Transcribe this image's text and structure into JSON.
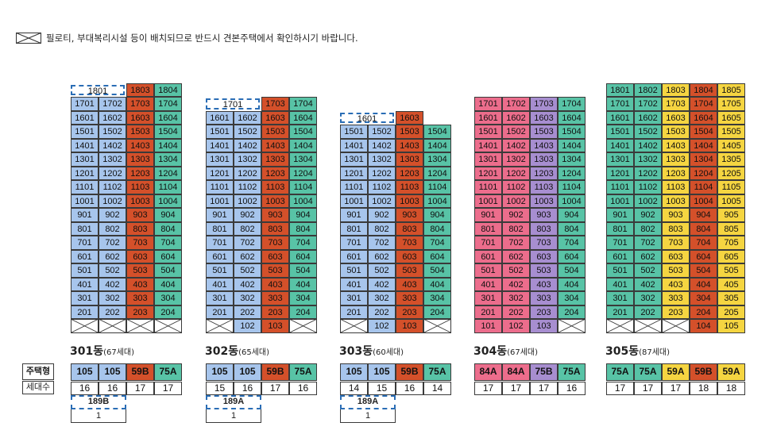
{
  "note": {
    "text": "필로티, 부대복리시설 등이 배치되므로 반드시 견본주택에서 확인하시기 바랍니다."
  },
  "row_headers": {
    "type": "주택형",
    "count": "세대수"
  },
  "colors": {
    "blue": "#a7c5ec",
    "orange": "#d4502a",
    "green": "#58c3a6",
    "pink": "#ec6d8c",
    "purple": "#a78ed0",
    "yellow": "#f5d541",
    "dash": "#2a6db5"
  },
  "buildings": [
    {
      "name": "301동",
      "units": "(67세대)",
      "colors": [
        "blue",
        "blue",
        "orange",
        "green"
      ],
      "types": [
        "105",
        "105",
        "59B",
        "75A"
      ],
      "counts": [
        "16",
        "16",
        "17",
        "17"
      ],
      "extra": {
        "type": "189B",
        "count": "1"
      },
      "top_floor": 18,
      "floors": {
        "18": [
          "1801d",
          "",
          "1803",
          "1804"
        ],
        "17": [
          "1701",
          "1702",
          "1703",
          "1704"
        ],
        "16": [
          "1601",
          "1602",
          "1603",
          "1604"
        ],
        "15": [
          "1501",
          "1502",
          "1503",
          "1504"
        ],
        "14": [
          "1401",
          "1402",
          "1403",
          "1404"
        ],
        "13": [
          "1301",
          "1302",
          "1303",
          "1304"
        ],
        "12": [
          "1201",
          "1202",
          "1203",
          "1204"
        ],
        "11": [
          "1101",
          "1102",
          "1103",
          "1104"
        ],
        "10": [
          "1001",
          "1002",
          "1003",
          "1004"
        ],
        "9": [
          "901",
          "902",
          "903",
          "904"
        ],
        "8": [
          "801",
          "802",
          "803",
          "804"
        ],
        "7": [
          "701",
          "702",
          "703",
          "704"
        ],
        "6": [
          "601",
          "602",
          "603",
          "604"
        ],
        "5": [
          "501",
          "502",
          "503",
          "504"
        ],
        "4": [
          "401",
          "402",
          "403",
          "404"
        ],
        "3": [
          "301",
          "302",
          "303",
          "304"
        ],
        "2": [
          "201",
          "202",
          "203",
          "204"
        ],
        "1": [
          "x",
          "x",
          "x",
          "x"
        ]
      }
    },
    {
      "name": "302동",
      "units": "(65세대)",
      "colors": [
        "blue",
        "blue",
        "orange",
        "green"
      ],
      "types": [
        "105",
        "105",
        "59B",
        "75A"
      ],
      "counts": [
        "15",
        "16",
        "17",
        "16"
      ],
      "extra": {
        "type": "189A",
        "count": "1"
      },
      "top_floor": 17,
      "floors": {
        "17": [
          "1701d",
          "",
          "1703",
          "1704"
        ],
        "16": [
          "1601",
          "1602",
          "1603",
          "1604"
        ],
        "15": [
          "1501",
          "1502",
          "1503",
          "1504"
        ],
        "14": [
          "1401",
          "1402",
          "1403",
          "1404"
        ],
        "13": [
          "1301",
          "1302",
          "1303",
          "1304"
        ],
        "12": [
          "1201",
          "1202",
          "1203",
          "1204"
        ],
        "11": [
          "1101",
          "1102",
          "1103",
          "1104"
        ],
        "10": [
          "1001",
          "1002",
          "1003",
          "1004"
        ],
        "9": [
          "901",
          "902",
          "903",
          "904"
        ],
        "8": [
          "801",
          "802",
          "803",
          "804"
        ],
        "7": [
          "701",
          "702",
          "703",
          "704"
        ],
        "6": [
          "601",
          "602",
          "603",
          "604"
        ],
        "5": [
          "501",
          "502",
          "503",
          "504"
        ],
        "4": [
          "401",
          "402",
          "403",
          "404"
        ],
        "3": [
          "301",
          "302",
          "303",
          "304"
        ],
        "2": [
          "201",
          "202",
          "203",
          "204"
        ],
        "1": [
          "x",
          "102",
          "103",
          "x"
        ]
      }
    },
    {
      "name": "303동",
      "units": "(60세대)",
      "colors": [
        "blue",
        "blue",
        "orange",
        "green"
      ],
      "types": [
        "105",
        "105",
        "59B",
        "75A"
      ],
      "counts": [
        "14",
        "15",
        "16",
        "14"
      ],
      "extra": {
        "type": "189A",
        "count": "1"
      },
      "top_floor": 16,
      "floors": {
        "16": [
          "1601d",
          "",
          "1603",
          "-"
        ],
        "15": [
          "1501",
          "1502",
          "1503",
          "1504"
        ],
        "14": [
          "1401",
          "1402",
          "1403",
          "1404"
        ],
        "13": [
          "1301",
          "1302",
          "1303",
          "1304"
        ],
        "12": [
          "1201",
          "1202",
          "1203",
          "1204"
        ],
        "11": [
          "1101",
          "1102",
          "1103",
          "1104"
        ],
        "10": [
          "1001",
          "1002",
          "1003",
          "1004"
        ],
        "9": [
          "901",
          "902",
          "903",
          "904"
        ],
        "8": [
          "801",
          "802",
          "803",
          "804"
        ],
        "7": [
          "701",
          "702",
          "703",
          "704"
        ],
        "6": [
          "601",
          "602",
          "603",
          "604"
        ],
        "5": [
          "501",
          "502",
          "503",
          "504"
        ],
        "4": [
          "401",
          "402",
          "403",
          "404"
        ],
        "3": [
          "301",
          "302",
          "303",
          "304"
        ],
        "2": [
          "201",
          "202",
          "203",
          "204"
        ],
        "1": [
          "x",
          "102",
          "103",
          "x"
        ]
      }
    },
    {
      "name": "304동",
      "units": "(67세대)",
      "colors": [
        "pink",
        "pink",
        "purple",
        "green"
      ],
      "types": [
        "84A",
        "84A",
        "75B",
        "75A"
      ],
      "counts": [
        "17",
        "17",
        "17",
        "16"
      ],
      "extra": null,
      "top_floor": 17,
      "floors": {
        "17": [
          "1701",
          "1702",
          "1703",
          "1704"
        ],
        "16": [
          "1601",
          "1602",
          "1603",
          "1604"
        ],
        "15": [
          "1501",
          "1502",
          "1503",
          "1504"
        ],
        "14": [
          "1401",
          "1402",
          "1403",
          "1404"
        ],
        "13": [
          "1301",
          "1302",
          "1303",
          "1304"
        ],
        "12": [
          "1201",
          "1202",
          "1203",
          "1204"
        ],
        "11": [
          "1101",
          "1102",
          "1103",
          "1104"
        ],
        "10": [
          "1001",
          "1002",
          "1003",
          "1004"
        ],
        "9": [
          "901",
          "902",
          "903",
          "904"
        ],
        "8": [
          "801",
          "802",
          "803",
          "804"
        ],
        "7": [
          "701",
          "702",
          "703",
          "704"
        ],
        "6": [
          "601",
          "602",
          "603",
          "604"
        ],
        "5": [
          "501",
          "502",
          "503",
          "504"
        ],
        "4": [
          "401",
          "402",
          "403",
          "404"
        ],
        "3": [
          "301",
          "302",
          "303",
          "304"
        ],
        "2": [
          "201",
          "202",
          "203",
          "204"
        ],
        "1": [
          "101",
          "102",
          "103",
          "x"
        ]
      }
    },
    {
      "name": "305동",
      "units": "(87세대)",
      "colors": [
        "green",
        "green",
        "yellow",
        "orange",
        "yellow"
      ],
      "types": [
        "75A",
        "75A",
        "59A",
        "59B",
        "59A"
      ],
      "counts": [
        "17",
        "17",
        "17",
        "18",
        "18"
      ],
      "extra": null,
      "top_floor": 18,
      "floors": {
        "18": [
          "1801",
          "1802",
          "1803",
          "1804",
          "1805"
        ],
        "17": [
          "1701",
          "1702",
          "1703",
          "1704",
          "1705"
        ],
        "16": [
          "1601",
          "1602",
          "1603",
          "1604",
          "1605"
        ],
        "15": [
          "1501",
          "1502",
          "1503",
          "1504",
          "1505"
        ],
        "14": [
          "1401",
          "1402",
          "1403",
          "1404",
          "1405"
        ],
        "13": [
          "1301",
          "1302",
          "1303",
          "1304",
          "1305"
        ],
        "12": [
          "1201",
          "1202",
          "1203",
          "1204",
          "1205"
        ],
        "11": [
          "1101",
          "1102",
          "1103",
          "1104",
          "1105"
        ],
        "10": [
          "1001",
          "1002",
          "1003",
          "1004",
          "1005"
        ],
        "9": [
          "901",
          "902",
          "903",
          "904",
          "905"
        ],
        "8": [
          "801",
          "802",
          "803",
          "804",
          "805"
        ],
        "7": [
          "701",
          "702",
          "703",
          "704",
          "705"
        ],
        "6": [
          "601",
          "602",
          "603",
          "604",
          "605"
        ],
        "5": [
          "501",
          "502",
          "503",
          "504",
          "505"
        ],
        "4": [
          "401",
          "402",
          "403",
          "404",
          "405"
        ],
        "3": [
          "301",
          "302",
          "303",
          "304",
          "305"
        ],
        "2": [
          "201",
          "202",
          "203",
          "204",
          "205"
        ],
        "1": [
          "x",
          "x",
          "x",
          "104",
          "105"
        ]
      }
    }
  ]
}
